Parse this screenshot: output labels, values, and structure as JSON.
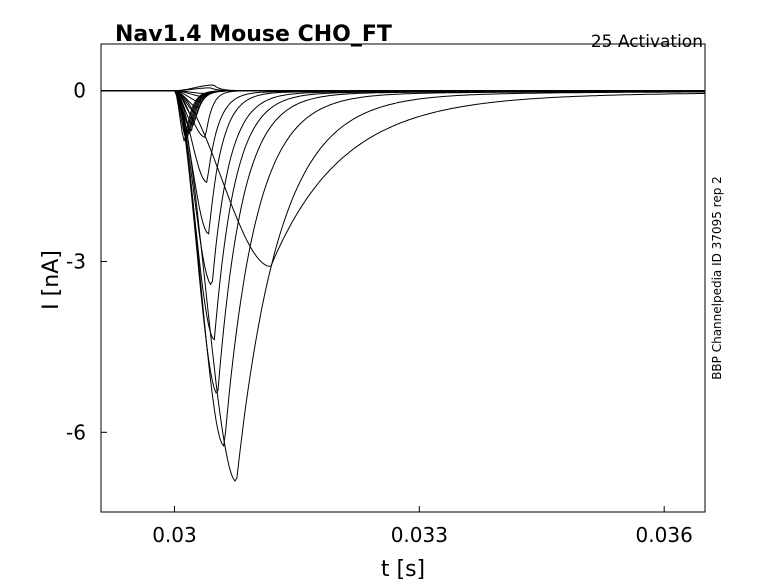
{
  "chart_data": {
    "type": "line",
    "title": "Nav1.4  Mouse  CHO_FT",
    "subtitle": "25  Activation",
    "xlabel": "t [s]",
    "ylabel": "I [nA]",
    "side_note": "BBP Channelpedia ID 37095 rep 2",
    "xlim": [
      0.0291,
      0.0365
    ],
    "ylim": [
      -7.4,
      0.82
    ],
    "x_ticks": [
      0.03,
      0.033,
      0.036
    ],
    "x_tick_labels": [
      "0.03",
      "0.033",
      "0.036"
    ],
    "y_ticks": [
      0,
      -3,
      -6
    ],
    "y_tick_labels": [
      "0",
      "-3",
      "-6"
    ],
    "grid": false,
    "legend": "none",
    "line_color": "#000000",
    "series_peaks": [
      {
        "t_peak": 0.03013,
        "i_peak": -0.9
      },
      {
        "t_peak": 0.03015,
        "i_peak": -0.85
      },
      {
        "t_peak": 0.03017,
        "i_peak": -0.8
      },
      {
        "t_peak": 0.03019,
        "i_peak": -0.75
      },
      {
        "t_peak": 0.03021,
        "i_peak": -0.7
      },
      {
        "t_peak": 0.03024,
        "i_peak": -0.6
      },
      {
        "t_peak": 0.03026,
        "i_peak": -0.5
      },
      {
        "t_peak": 0.03028,
        "i_peak": -0.4
      },
      {
        "t_peak": 0.0303,
        "i_peak": -0.3
      },
      {
        "t_peak": 0.03033,
        "i_peak": -0.2
      },
      {
        "t_peak": 0.03036,
        "i_peak": -0.1
      },
      {
        "t_peak": 0.03039,
        "i_peak": -0.05
      },
      {
        "t_peak": 0.03044,
        "i_peak": 0.05
      },
      {
        "t_peak": 0.03048,
        "i_peak": 0.1
      },
      {
        "t_peak": 0.03038,
        "i_peak": -0.82
      },
      {
        "t_peak": 0.0304,
        "i_peak": -1.6
      },
      {
        "t_peak": 0.03042,
        "i_peak": -2.5
      },
      {
        "t_peak": 0.03046,
        "i_peak": -3.4
      },
      {
        "t_peak": 0.03049,
        "i_peak": -4.35
      },
      {
        "t_peak": 0.03053,
        "i_peak": -5.3
      },
      {
        "t_peak": 0.03061,
        "i_peak": -6.2
      },
      {
        "t_peak": 0.03076,
        "i_peak": -6.8
      },
      {
        "t_peak": 0.03118,
        "i_peak": -2.95
      }
    ]
  }
}
